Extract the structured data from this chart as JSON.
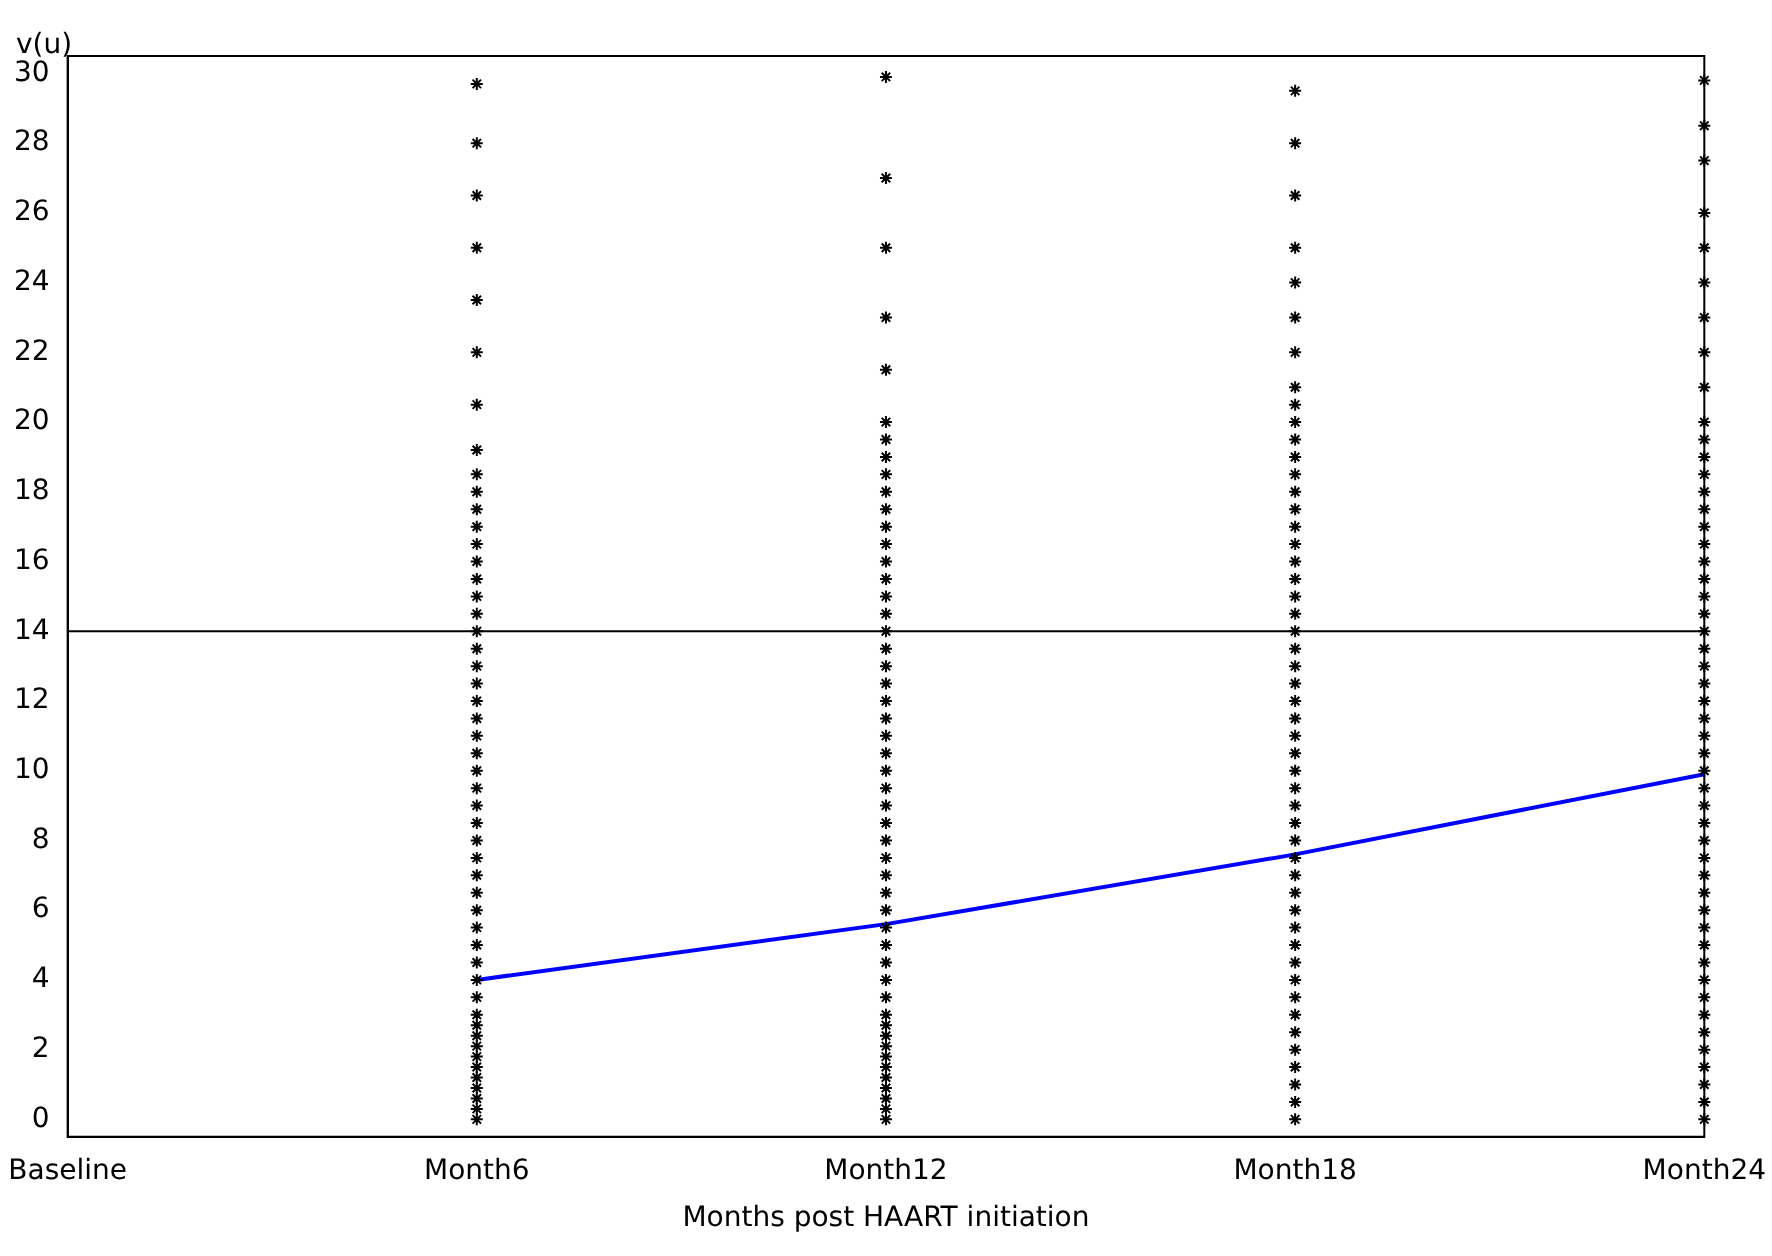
{
  "chart_data": {
    "type": "scatter",
    "xlabel": "Months post HAART initiation",
    "ylabel": "v(u)",
    "categories": [
      "Baseline",
      "Month6",
      "Month12",
      "Month18",
      "Month24"
    ],
    "ylim": [
      -0.5,
      30.5
    ],
    "yticks": [
      0,
      2,
      4,
      6,
      8,
      10,
      12,
      14,
      16,
      18,
      20,
      22,
      24,
      26,
      28,
      30
    ],
    "grid": false,
    "legend": false,
    "marker": "cross",
    "ref_lines": [
      {
        "axis": "y",
        "value": 14,
        "color": "#000000"
      }
    ],
    "series": [
      {
        "color": "#000000",
        "x": [
          "Month6",
          "Month6",
          "Month6",
          "Month6",
          "Month6",
          "Month6",
          "Month6",
          "Month6",
          "Month6",
          "Month6",
          "Month6",
          "Month6",
          "Month6",
          "Month6",
          "Month6",
          "Month6",
          "Month6",
          "Month6",
          "Month6",
          "Month6",
          "Month6",
          "Month6",
          "Month6",
          "Month6",
          "Month6",
          "Month6",
          "Month6",
          "Month6",
          "Month6",
          "Month6",
          "Month6",
          "Month6",
          "Month6",
          "Month6",
          "Month6",
          "Month6",
          "Month6",
          "Month6",
          "Month6",
          "Month6",
          "Month6",
          "Month6",
          "Month6",
          "Month6",
          "Month6",
          "Month6",
          "Month6",
          "Month6",
          "Month6",
          "Month6"
        ],
        "values": [
          0,
          0.3,
          0.6,
          0.9,
          1.2,
          1.5,
          1.8,
          2.1,
          2.4,
          2.7,
          3,
          3.5,
          4,
          4.5,
          5,
          5.5,
          6,
          6.5,
          7,
          7.5,
          8,
          8.5,
          9,
          9.5,
          10,
          10.5,
          11,
          11.5,
          12,
          12.5,
          13,
          13.5,
          14,
          14.5,
          15,
          15.5,
          16,
          16.5,
          17,
          17.5,
          18,
          18.5,
          19.2,
          20.5,
          22,
          23.5,
          25,
          26.5,
          28,
          29.7
        ]
      },
      {
        "color": "#000000",
        "x": [
          "Month12",
          "Month12",
          "Month12",
          "Month12",
          "Month12",
          "Month12",
          "Month12",
          "Month12",
          "Month12",
          "Month12",
          "Month12",
          "Month12",
          "Month12",
          "Month12",
          "Month12",
          "Month12",
          "Month12",
          "Month12",
          "Month12",
          "Month12",
          "Month12",
          "Month12",
          "Month12",
          "Month12",
          "Month12",
          "Month12",
          "Month12",
          "Month12",
          "Month12",
          "Month12",
          "Month12",
          "Month12",
          "Month12",
          "Month12",
          "Month12",
          "Month12",
          "Month12",
          "Month12",
          "Month12",
          "Month12",
          "Month12",
          "Month12",
          "Month12",
          "Month12",
          "Month12",
          "Month12",
          "Month12",
          "Month12",
          "Month12",
          "Month12"
        ],
        "values": [
          0,
          0.3,
          0.6,
          0.9,
          1.2,
          1.5,
          1.8,
          2.1,
          2.4,
          2.7,
          3,
          3.5,
          4,
          4.5,
          5,
          5.5,
          6,
          6.5,
          7,
          7.5,
          8,
          8.5,
          9,
          9.5,
          10,
          10.5,
          11,
          11.5,
          12,
          12.5,
          13,
          13.5,
          14,
          14.5,
          15,
          15.5,
          16,
          16.5,
          17,
          17.5,
          18,
          18.5,
          19,
          19.5,
          20,
          21.5,
          23,
          25,
          27,
          29.9
        ]
      },
      {
        "color": "#000000",
        "x": [
          "Month18",
          "Month18",
          "Month18",
          "Month18",
          "Month18",
          "Month18",
          "Month18",
          "Month18",
          "Month18",
          "Month18",
          "Month18",
          "Month18",
          "Month18",
          "Month18",
          "Month18",
          "Month18",
          "Month18",
          "Month18",
          "Month18",
          "Month18",
          "Month18",
          "Month18",
          "Month18",
          "Month18",
          "Month18",
          "Month18",
          "Month18",
          "Month18",
          "Month18",
          "Month18",
          "Month18",
          "Month18",
          "Month18",
          "Month18",
          "Month18",
          "Month18",
          "Month18",
          "Month18",
          "Month18",
          "Month18",
          "Month18",
          "Month18",
          "Month18",
          "Month18",
          "Month18",
          "Month18",
          "Month18",
          "Month18",
          "Month18",
          "Month18"
        ],
        "values": [
          0,
          0.5,
          1,
          1.5,
          2,
          2.5,
          3,
          3.5,
          4,
          4.5,
          5,
          5.5,
          6,
          6.5,
          7,
          7.5,
          8,
          8.5,
          9,
          9.5,
          10,
          10.5,
          11,
          11.5,
          12,
          12.5,
          13,
          13.5,
          14,
          14.5,
          15,
          15.5,
          16,
          16.5,
          17,
          17.5,
          18,
          18.5,
          19,
          19.5,
          20,
          20.5,
          21,
          22,
          23,
          24,
          25,
          26.5,
          28,
          29.5
        ]
      },
      {
        "color": "#000000",
        "x": [
          "Month24",
          "Month24",
          "Month24",
          "Month24",
          "Month24",
          "Month24",
          "Month24",
          "Month24",
          "Month24",
          "Month24",
          "Month24",
          "Month24",
          "Month24",
          "Month24",
          "Month24",
          "Month24",
          "Month24",
          "Month24",
          "Month24",
          "Month24",
          "Month24",
          "Month24",
          "Month24",
          "Month24",
          "Month24",
          "Month24",
          "Month24",
          "Month24",
          "Month24",
          "Month24",
          "Month24",
          "Month24",
          "Month24",
          "Month24",
          "Month24",
          "Month24",
          "Month24",
          "Month24",
          "Month24",
          "Month24",
          "Month24",
          "Month24",
          "Month24",
          "Month24",
          "Month24",
          "Month24",
          "Month24",
          "Month24",
          "Month24",
          "Month24"
        ],
        "values": [
          0,
          0.5,
          1,
          1.5,
          2,
          2.5,
          3,
          3.5,
          4,
          4.5,
          5,
          5.5,
          6,
          6.5,
          7,
          7.5,
          8,
          8.5,
          9,
          9.5,
          10,
          10.5,
          11,
          11.5,
          12,
          12.5,
          13,
          13.5,
          14,
          14.5,
          15,
          15.5,
          16,
          16.5,
          17,
          17.5,
          18,
          18.5,
          19,
          19.5,
          20,
          21,
          22,
          23,
          24,
          25,
          26,
          27.5,
          28.5,
          29.8
        ]
      },
      {
        "type": "line",
        "color": "#0000ff",
        "marker": "none",
        "line_style": "solid",
        "x": [
          "Month6",
          "Month12",
          "Month18",
          "Month24"
        ],
        "values": [
          4,
          5.6,
          7.6,
          9.9
        ]
      }
    ]
  }
}
